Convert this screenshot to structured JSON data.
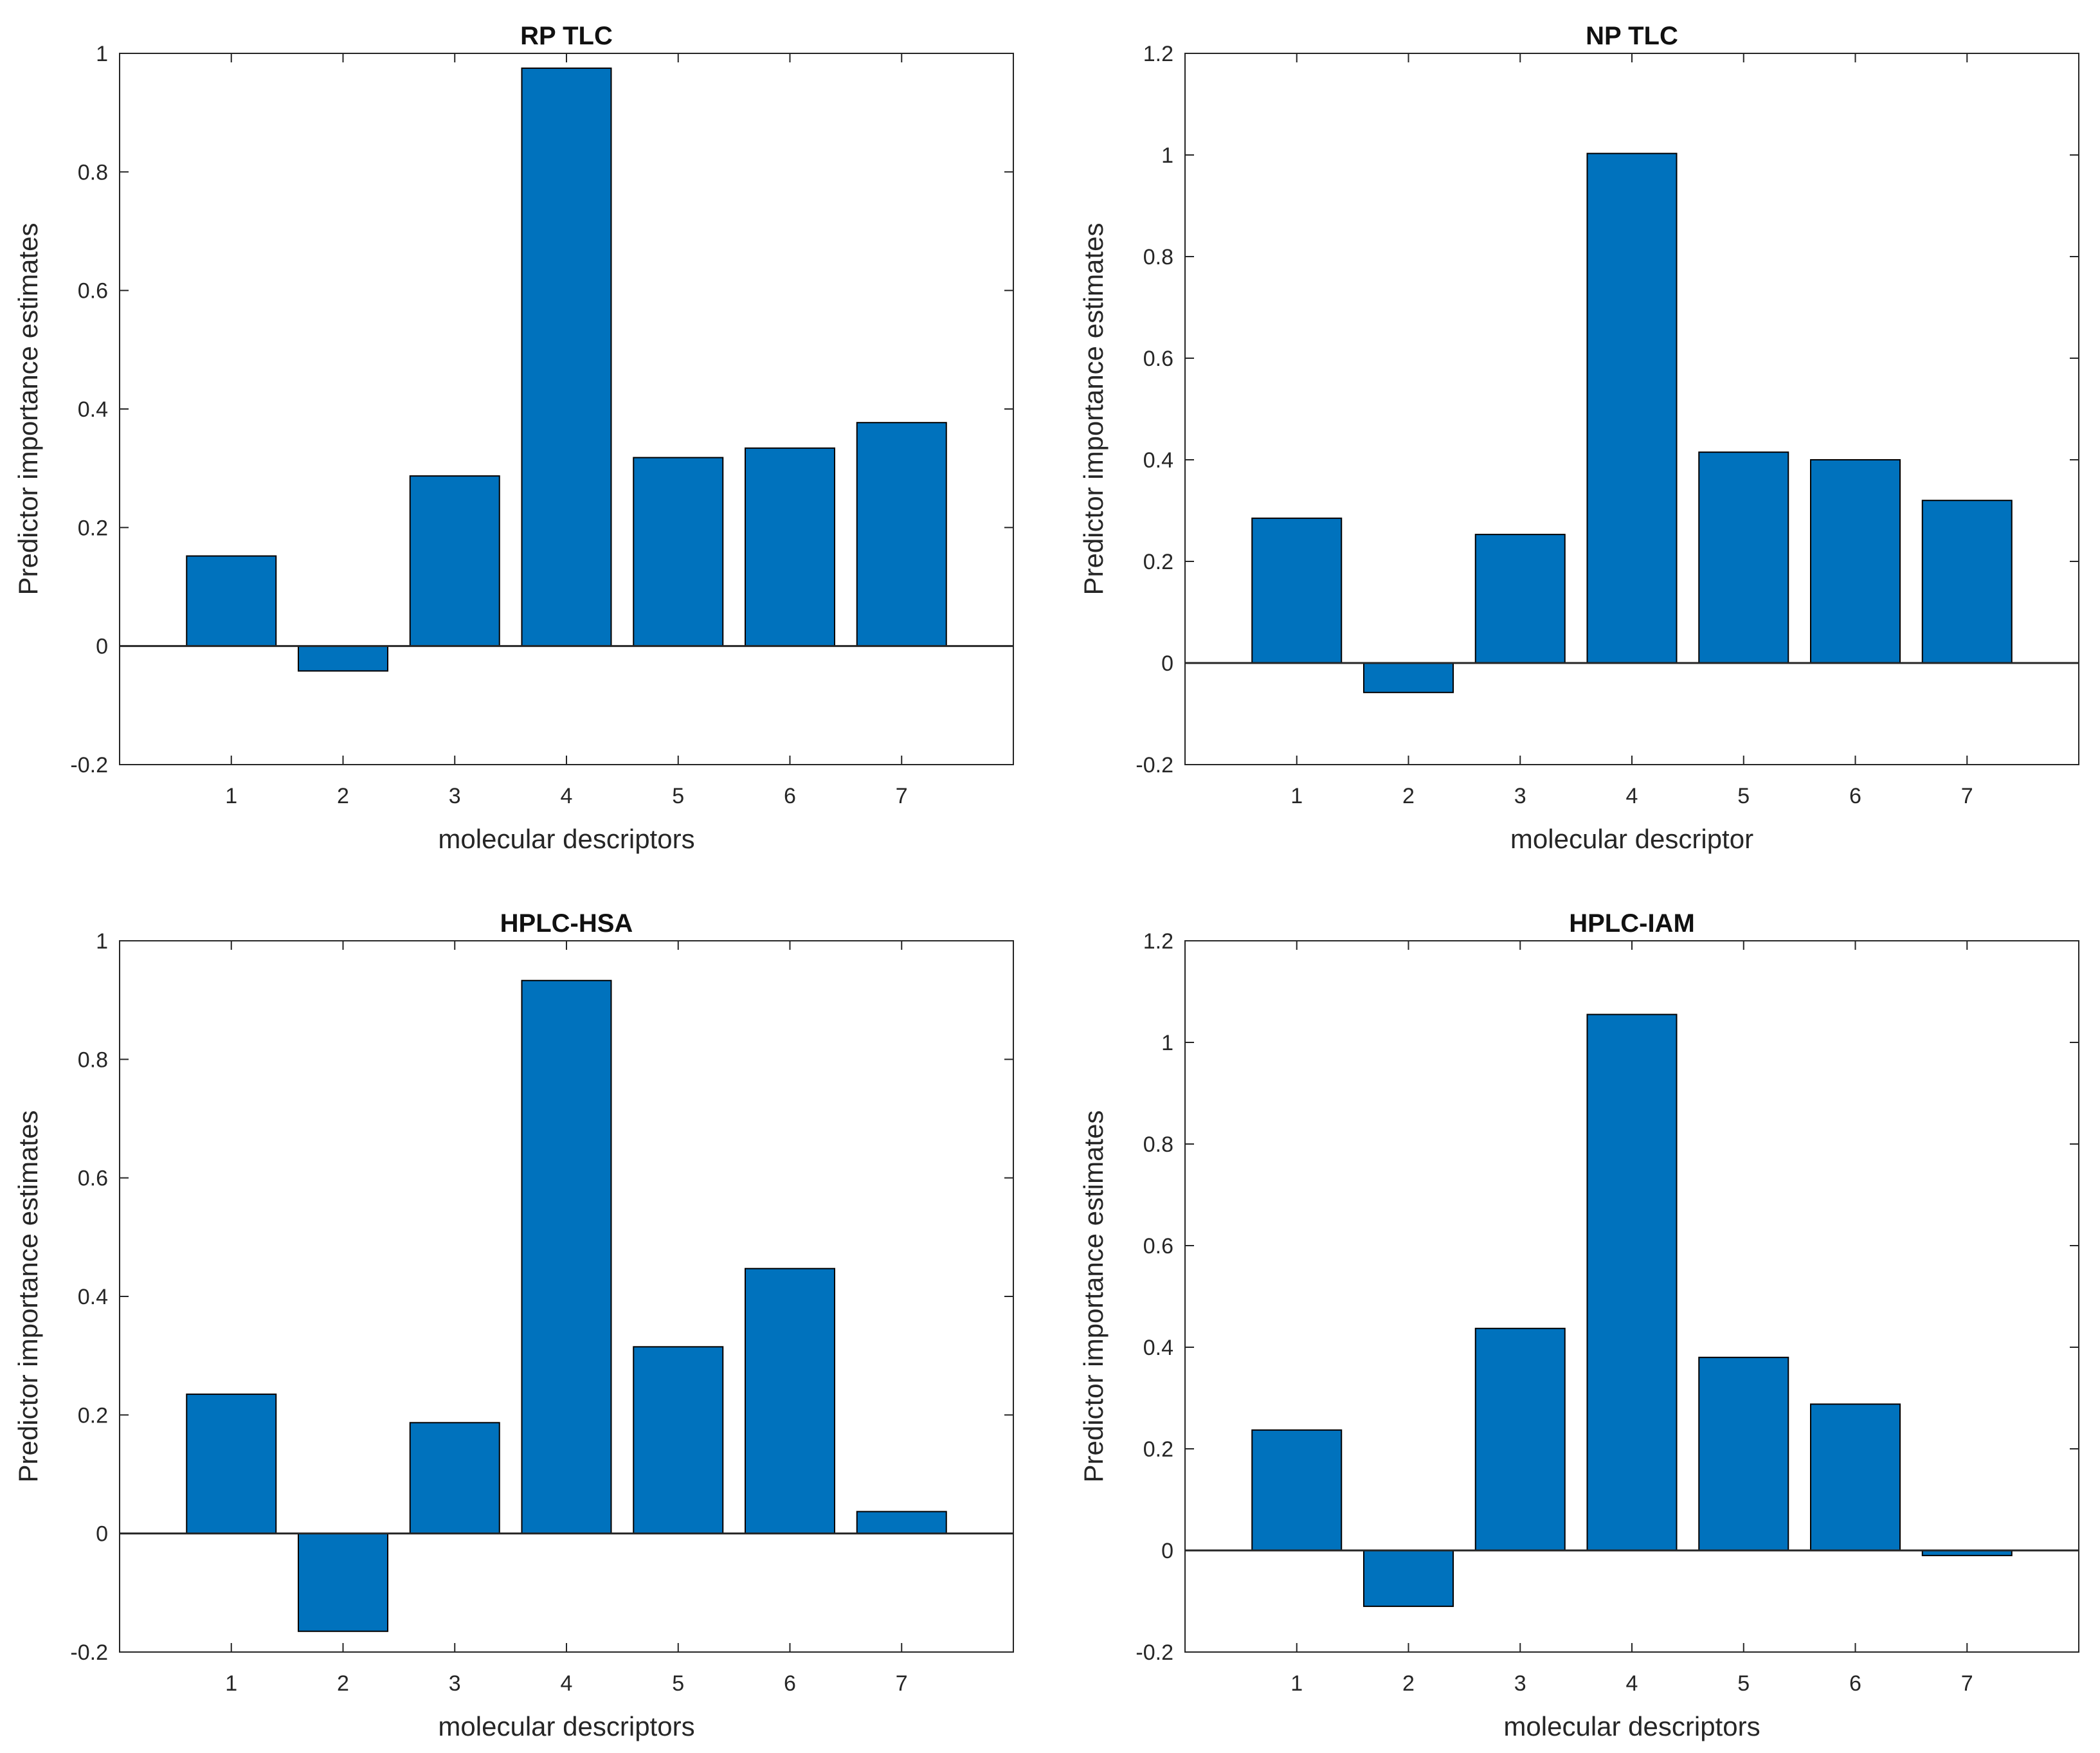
{
  "chart_data": [
    {
      "type": "bar",
      "title": "RP TLC",
      "xlabel": "molecular descriptors",
      "ylabel": "Predictor importance estimates",
      "categories": [
        "1",
        "2",
        "3",
        "4",
        "5",
        "6",
        "7"
      ],
      "values": [
        0.152,
        -0.042,
        0.287,
        0.975,
        0.318,
        0.334,
        0.377
      ],
      "ylim": [
        -0.2,
        1
      ],
      "yticks": [
        "-0.2",
        "0",
        "0.2",
        "0.4",
        "0.6",
        "0.8",
        "1"
      ],
      "xlim": [
        0,
        8
      ],
      "grid": false,
      "color": "#0072BD"
    },
    {
      "type": "bar",
      "title": "NP TLC",
      "xlabel": "molecular descriptor",
      "ylabel": "Predictor importance estimates",
      "categories": [
        "1",
        "2",
        "3",
        "4",
        "5",
        "6",
        "7"
      ],
      "values": [
        0.285,
        -0.058,
        0.253,
        1.003,
        0.415,
        0.4,
        0.32
      ],
      "ylim": [
        -0.2,
        1.2
      ],
      "yticks": [
        "-0.2",
        "0",
        "0.2",
        "0.4",
        "0.6",
        "0.8",
        "1",
        "1.2"
      ],
      "xlim": [
        0,
        8
      ],
      "grid": false,
      "color": "#0072BD"
    },
    {
      "type": "bar",
      "title": "HPLC-HSA",
      "xlabel": "molecular descriptors",
      "ylabel": "Predictor importance estimates",
      "categories": [
        "1",
        "2",
        "3",
        "4",
        "5",
        "6",
        "7"
      ],
      "values": [
        0.235,
        -0.165,
        0.187,
        0.933,
        0.315,
        0.447,
        0.037
      ],
      "ylim": [
        -0.2,
        1
      ],
      "yticks": [
        "-0.2",
        "0",
        "0.2",
        "0.4",
        "0.6",
        "0.8",
        "1"
      ],
      "xlim": [
        0,
        8
      ],
      "grid": false,
      "color": "#0072BD"
    },
    {
      "type": "bar",
      "title": "HPLC-IAM",
      "xlabel": "molecular descriptors",
      "ylabel": "Predictor importance estimates",
      "categories": [
        "1",
        "2",
        "3",
        "4",
        "5",
        "6",
        "7"
      ],
      "values": [
        0.237,
        -0.11,
        0.437,
        1.055,
        0.38,
        0.288,
        -0.01
      ],
      "ylim": [
        -0.2,
        1.2
      ],
      "yticks": [
        "-0.2",
        "0",
        "0.2",
        "0.4",
        "0.6",
        "0.8",
        "1",
        "1.2"
      ],
      "xlim": [
        0,
        8
      ],
      "grid": false,
      "color": "#0072BD"
    }
  ]
}
